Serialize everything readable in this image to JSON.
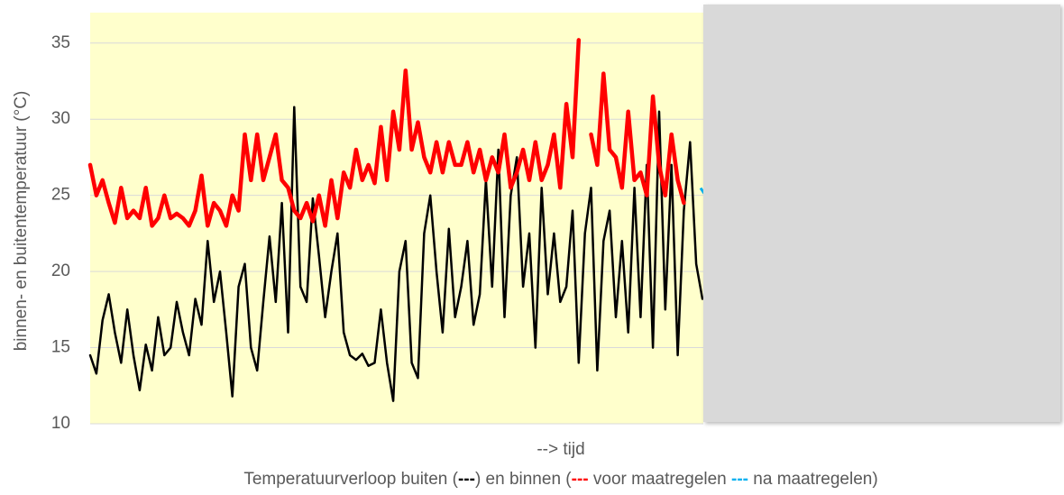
{
  "chart_data": {
    "type": "line",
    "y_label": "binnen- en buitentemperatuur (°C)",
    "x_label": "--> tijd",
    "caption": [
      "Temperatuurverloop buiten (",
      "---",
      ") en binnen (",
      "---",
      " voor maatregelen ",
      "---",
      " na maatregelen)"
    ],
    "ylim": [
      10,
      37
    ],
    "yticks": [
      10,
      15,
      20,
      25,
      30,
      35
    ],
    "grid": true,
    "series": [
      {
        "color": "#000000",
        "values": [
          14.5,
          13.3,
          16.8,
          18.5,
          16,
          14,
          17.5,
          14.5,
          12.2,
          15.2,
          13.5,
          17,
          14.5,
          15,
          18,
          16,
          14.5,
          18.2,
          16.5,
          22,
          18,
          20,
          16,
          11.8,
          19,
          20.5,
          15,
          13.5,
          18,
          22.3,
          18,
          24.5,
          16,
          30.8,
          19,
          18,
          24.8,
          21,
          17,
          20,
          22.5,
          16,
          14.5,
          14.2,
          14.6,
          13.8,
          14,
          17.5,
          14,
          11.5,
          20,
          22,
          14,
          13,
          22.5,
          25,
          20,
          16,
          22.8,
          17,
          19,
          22,
          16.5,
          18.5,
          26,
          19,
          28,
          17,
          25,
          27.5,
          19,
          22.5,
          15,
          25.5,
          18.5,
          22.5,
          18,
          19,
          24,
          14,
          22.5,
          25.5,
          13.5,
          22,
          24,
          17,
          22,
          16,
          25.5,
          17,
          27,
          15,
          30.5,
          17.5,
          27,
          14.5,
          24,
          28.5,
          20.5,
          18.2
        ]
      },
      {
        "color": "#ff0000",
        "values": [
          27,
          25,
          26,
          24.5,
          23.2,
          25.5,
          23.5,
          24,
          23.5,
          25.5,
          23,
          23.5,
          25,
          23.5,
          23.8,
          23.5,
          23,
          24,
          26.3,
          23,
          24.5,
          24,
          23,
          25,
          24,
          29,
          26,
          29,
          26,
          27.5,
          29,
          26,
          25.5,
          24,
          23.5,
          24.5,
          23.3,
          25,
          23,
          26,
          23.5,
          26.5,
          25.5,
          28,
          26,
          27,
          25.8,
          29.5,
          26,
          30.5,
          28,
          33.2,
          28,
          29.8,
          27.5,
          26.5,
          28.5,
          26.5,
          28.5,
          27,
          27,
          28.5,
          26.5,
          28,
          26,
          27.5,
          26.5,
          29,
          25.5,
          26.5,
          28,
          26,
          28.5,
          26,
          27,
          29,
          25.5,
          31,
          27.5,
          35.2,
          null,
          29,
          27,
          33,
          28,
          27.5,
          25.5,
          30.5,
          26,
          26.5,
          25,
          31.5,
          27,
          25,
          29,
          26,
          24.5,
          null,
          null,
          null
        ]
      },
      {
        "color": "#00b0f0",
        "values": [
          null,
          null,
          null,
          null,
          null,
          null,
          null,
          null,
          null,
          null,
          null,
          null,
          null,
          null,
          null,
          null,
          null,
          null,
          null,
          null,
          null,
          null,
          null,
          null,
          null,
          null,
          null,
          null,
          null,
          null,
          null,
          null,
          null,
          null,
          null,
          null,
          null,
          null,
          null,
          null,
          null,
          null,
          null,
          null,
          null,
          null,
          null,
          null,
          null,
          null,
          null,
          null,
          null,
          null,
          null,
          null,
          null,
          null,
          null,
          null,
          null,
          null,
          null,
          null,
          null,
          null,
          null,
          null,
          null,
          null,
          null,
          null,
          null,
          null,
          null,
          null,
          null,
          null,
          null,
          null,
          null,
          null,
          null,
          null,
          null,
          null,
          null,
          null,
          null,
          null,
          null,
          null,
          null,
          null,
          null,
          null,
          null,
          null,
          null,
          25.3
        ]
      }
    ]
  }
}
